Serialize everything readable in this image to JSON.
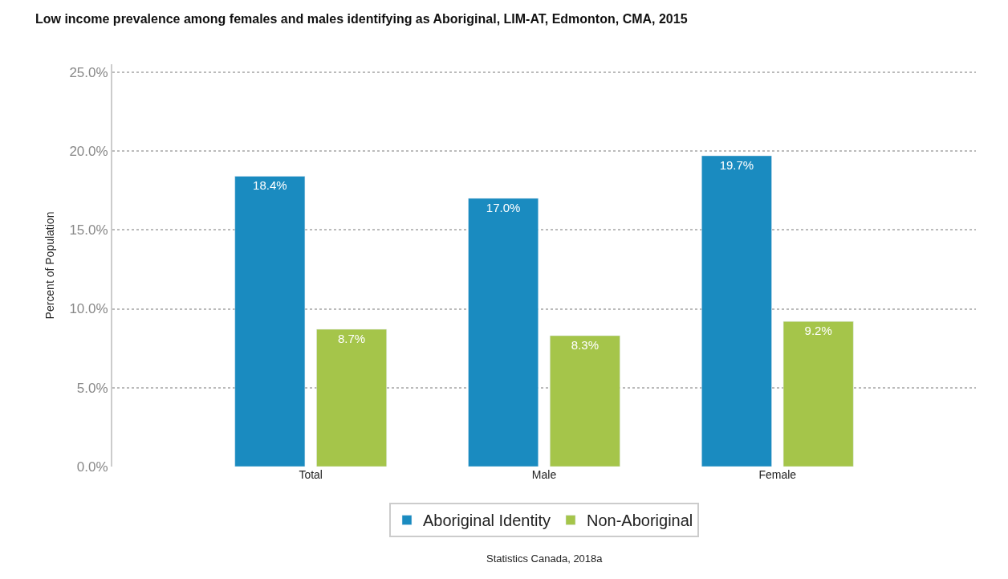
{
  "chart_data": {
    "type": "bar",
    "title": "Low income prevalence among females and males identifying as Aboriginal, LIM-AT, Edmonton, CMA, 2015",
    "ylabel": "Percent of Population",
    "categories": [
      "Total",
      "Male",
      "Female"
    ],
    "series": [
      {
        "name": "Aboriginal Identity",
        "color": "#1a8bc0",
        "values": [
          18.4,
          17.0,
          19.7
        ],
        "value_labels": [
          "18.4%",
          "17.0%",
          "19.7%"
        ]
      },
      {
        "name": "Non-Aboriginal",
        "color": "#a5c54a",
        "values": [
          8.7,
          8.3,
          9.2
        ],
        "value_labels": [
          "8.7%",
          "8.3%",
          "9.2%"
        ]
      }
    ],
    "ylim": [
      0,
      25.5
    ],
    "yticks": [
      {
        "value": 0,
        "label": "0.0%"
      },
      {
        "value": 5,
        "label": "5.0%"
      },
      {
        "value": 10,
        "label": "10.0%"
      },
      {
        "value": 15,
        "label": "15.0%"
      },
      {
        "value": 20,
        "label": "20.0%"
      },
      {
        "value": 25,
        "label": "25.0%"
      }
    ],
    "grid": "y",
    "legend": "bottom",
    "annotations": [
      "Statistics Canada, 2018a"
    ]
  }
}
